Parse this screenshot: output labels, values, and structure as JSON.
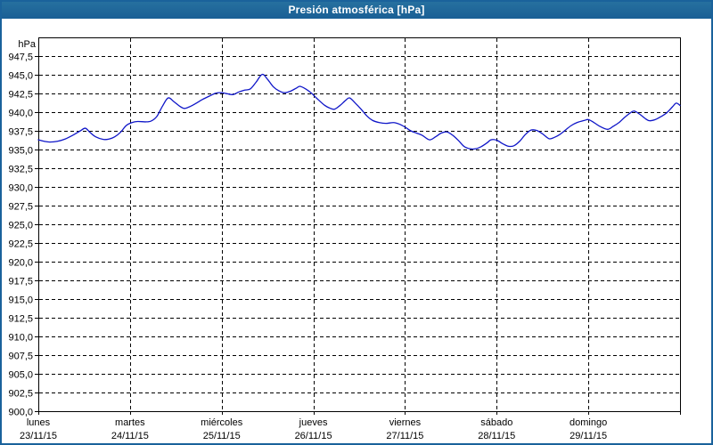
{
  "title": "Presión atmosférica [hPa]",
  "colors": {
    "titlebar_bg": "#1d6399",
    "title_text": "#ffffff",
    "window_border": "#1a629b",
    "plot_bg": "#ffffff",
    "plot_border": "#000000",
    "grid": "#000000",
    "label_text": "#000000",
    "line": "#0f16c8"
  },
  "chart_data": {
    "type": "line",
    "title": "Presión atmosférica [hPa]",
    "unit_label": "hPa",
    "xlabel": "",
    "ylabel": "hPa",
    "ylim": [
      900,
      950
    ],
    "ytick_step": 2.5,
    "ytick_labels": [
      "947,5",
      "945,0",
      "942,5",
      "940,0",
      "937,5",
      "935,0",
      "932,5",
      "930,0",
      "927,5",
      "925,0",
      "922,5",
      "920,0",
      "917,5",
      "915,0",
      "912,5",
      "910,0",
      "907,5",
      "905,0",
      "902,5",
      "900,0"
    ],
    "grid": "dashed",
    "legend": "none",
    "x_range_hours": [
      0,
      168
    ],
    "x_days": [
      {
        "name": "lunes",
        "date": "23/11/15"
      },
      {
        "name": "martes",
        "date": "24/11/15"
      },
      {
        "name": "miércoles",
        "date": "25/11/15"
      },
      {
        "name": "jueves",
        "date": "26/11/15"
      },
      {
        "name": "viernes",
        "date": "27/11/15"
      },
      {
        "name": "sábado",
        "date": "28/11/15"
      },
      {
        "name": "domingo",
        "date": "29/11/15"
      }
    ],
    "series": [
      {
        "name": "Presión atmosférica [hPa]",
        "units": "hPa",
        "points": [
          [
            0,
            936.3
          ],
          [
            1.5,
            936.1
          ],
          [
            3,
            936.0
          ],
          [
            5,
            936.1
          ],
          [
            7,
            936.4
          ],
          [
            9,
            936.9
          ],
          [
            11,
            937.5
          ],
          [
            12.3,
            937.85
          ],
          [
            13.5,
            937.3
          ],
          [
            15,
            936.7
          ],
          [
            17,
            936.35
          ],
          [
            18.5,
            936.4
          ],
          [
            20,
            936.7
          ],
          [
            21.5,
            937.3
          ],
          [
            23,
            938.2
          ],
          [
            24.5,
            938.6
          ],
          [
            26,
            938.75
          ],
          [
            28,
            938.7
          ],
          [
            29.5,
            938.8
          ],
          [
            31,
            939.4
          ],
          [
            32.5,
            940.8
          ],
          [
            34,
            941.9
          ],
          [
            35.5,
            941.4
          ],
          [
            37,
            940.8
          ],
          [
            38.2,
            940.5
          ],
          [
            39.5,
            940.7
          ],
          [
            41,
            941.1
          ],
          [
            43,
            941.7
          ],
          [
            45,
            942.2
          ],
          [
            46.5,
            942.55
          ],
          [
            48,
            942.6
          ],
          [
            49.5,
            942.45
          ],
          [
            51,
            942.35
          ],
          [
            52.5,
            942.7
          ],
          [
            54,
            942.95
          ],
          [
            55.5,
            943.1
          ],
          [
            57,
            944.0
          ],
          [
            58.6,
            945.05
          ],
          [
            60,
            944.4
          ],
          [
            61.5,
            943.4
          ],
          [
            63,
            942.85
          ],
          [
            64.5,
            942.6
          ],
          [
            66,
            942.8
          ],
          [
            67.5,
            943.2
          ],
          [
            68.5,
            943.45
          ],
          [
            70,
            943.1
          ],
          [
            71.6,
            942.5
          ],
          [
            73,
            941.8
          ],
          [
            75,
            940.9
          ],
          [
            76.5,
            940.5
          ],
          [
            77.6,
            940.4
          ],
          [
            79,
            940.9
          ],
          [
            80.5,
            941.6
          ],
          [
            81.5,
            941.9
          ],
          [
            83,
            941.2
          ],
          [
            84.5,
            940.4
          ],
          [
            86,
            939.5
          ],
          [
            87.5,
            938.9
          ],
          [
            89.3,
            938.6
          ],
          [
            91,
            938.5
          ],
          [
            93,
            938.6
          ],
          [
            94.5,
            938.4
          ],
          [
            96,
            938.0
          ],
          [
            97.5,
            937.5
          ],
          [
            99,
            937.2
          ],
          [
            100.5,
            936.9
          ],
          [
            102.4,
            936.3
          ],
          [
            104,
            936.7
          ],
          [
            105.5,
            937.2
          ],
          [
            107,
            937.35
          ],
          [
            108.5,
            936.9
          ],
          [
            110,
            936.2
          ],
          [
            111.5,
            935.4
          ],
          [
            113,
            935.1
          ],
          [
            114.5,
            935.1
          ],
          [
            116,
            935.4
          ],
          [
            117.5,
            935.9
          ],
          [
            118.5,
            936.3
          ],
          [
            120,
            936.25
          ],
          [
            121.5,
            935.8
          ],
          [
            123,
            935.45
          ],
          [
            124.5,
            935.5
          ],
          [
            126,
            936.1
          ],
          [
            127.5,
            937.0
          ],
          [
            129,
            937.6
          ],
          [
            130.5,
            937.55
          ],
          [
            132,
            937.1
          ],
          [
            133.7,
            936.45
          ],
          [
            135,
            936.6
          ],
          [
            136.5,
            937.0
          ],
          [
            138,
            937.6
          ],
          [
            139.5,
            938.2
          ],
          [
            141,
            938.6
          ],
          [
            143,
            938.9
          ],
          [
            144,
            939.0
          ],
          [
            145.5,
            938.6
          ],
          [
            147,
            938.1
          ],
          [
            149,
            937.7
          ],
          [
            150.5,
            938.1
          ],
          [
            152,
            938.6
          ],
          [
            153.5,
            939.3
          ],
          [
            155,
            939.9
          ],
          [
            156,
            940.15
          ],
          [
            157.5,
            939.7
          ],
          [
            159,
            939.1
          ],
          [
            160,
            938.85
          ],
          [
            161.5,
            939.0
          ],
          [
            163,
            939.4
          ],
          [
            164.5,
            939.9
          ],
          [
            166,
            940.7
          ],
          [
            167,
            941.2
          ],
          [
            168,
            940.9
          ]
        ]
      }
    ]
  }
}
